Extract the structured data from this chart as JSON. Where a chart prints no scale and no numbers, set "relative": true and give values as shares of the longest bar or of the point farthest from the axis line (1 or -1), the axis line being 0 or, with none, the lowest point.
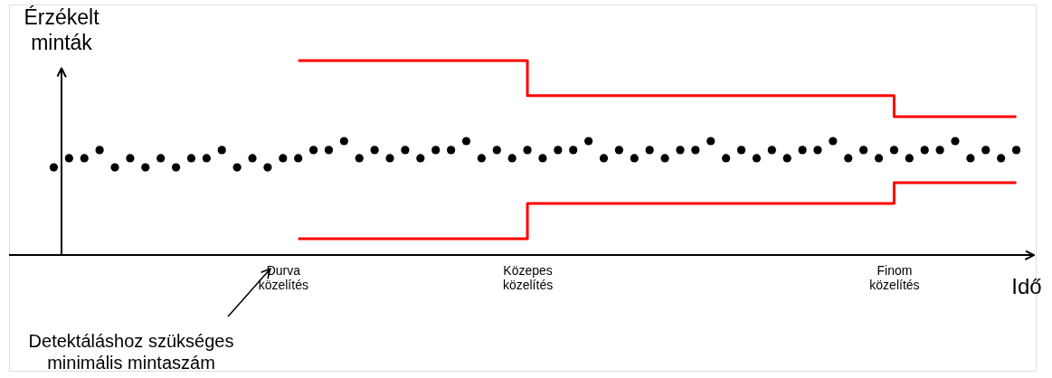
{
  "chart_data": {
    "type": "scatter",
    "relative": true,
    "xlabel": "Idő",
    "ylabel": "Érzékelt minták",
    "categories": [
      null,
      null,
      null,
      null,
      null,
      null,
      null,
      null,
      null,
      null,
      null,
      null,
      null,
      null,
      null,
      "Durva közelítés",
      null,
      null,
      null,
      null,
      null,
      null,
      null,
      null,
      null,
      null,
      null,
      null,
      null,
      null,
      null,
      "Közepes közelítés",
      null,
      null,
      null,
      null,
      null,
      null,
      null,
      null,
      null,
      null,
      null,
      null,
      null,
      null,
      null,
      null,
      null,
      null,
      null,
      null,
      null,
      null,
      null,
      "Finom közelítés",
      null,
      null,
      null,
      null,
      null,
      null,
      null,
      null
    ],
    "grid": false,
    "tick_labels": "x",
    "annotations": [
      "Detektáláshoz szükséges minimális mintaszám"
    ],
    "series": [
      {
        "color": "#000000",
        "marker": "circle",
        "values": [
          0.451,
          0.498,
          0.498,
          0.54,
          0.451,
          0.498,
          0.451,
          0.498,
          0.451,
          0.498,
          0.498,
          0.54,
          0.451,
          0.498,
          0.451,
          0.498,
          0.498,
          0.54,
          0.54,
          0.586,
          0.498,
          0.54,
          0.498,
          0.54,
          0.498,
          0.54,
          0.54,
          0.586,
          0.498,
          0.54,
          0.498,
          0.54,
          0.498,
          0.54,
          0.54,
          0.586,
          0.498,
          0.54,
          0.498,
          0.54,
          0.498,
          0.54,
          0.54,
          0.586,
          0.498,
          0.54,
          0.498,
          0.54,
          0.498,
          0.54,
          0.54,
          0.586,
          0.498,
          0.54,
          0.498,
          0.54,
          0.498,
          0.54,
          0.54,
          0.586,
          0.498,
          0.54,
          0.498,
          0.54
        ]
      },
      {
        "type": "step",
        "color": "#ff0000",
        "marker": "none",
        "values": [
          null,
          null,
          null,
          null,
          null,
          null,
          null,
          null,
          null,
          null,
          null,
          null,
          null,
          null,
          null,
          null,
          1.0,
          1.0,
          1.0,
          1.0,
          1.0,
          1.0,
          1.0,
          1.0,
          1.0,
          1.0,
          1.0,
          1.0,
          1.0,
          1.0,
          1.0,
          0.819,
          0.819,
          0.819,
          0.819,
          0.819,
          0.819,
          0.819,
          0.819,
          0.819,
          0.819,
          0.819,
          0.819,
          0.819,
          0.819,
          0.819,
          0.819,
          0.819,
          0.819,
          0.819,
          0.819,
          0.819,
          0.819,
          0.819,
          0.819,
          0.712,
          0.712,
          0.712,
          0.712,
          0.712,
          0.712,
          0.712,
          0.712,
          0.712
        ]
      },
      {
        "type": "step",
        "color": "#ff0000",
        "marker": "none",
        "values": [
          null,
          null,
          null,
          null,
          null,
          null,
          null,
          null,
          null,
          null,
          null,
          null,
          null,
          null,
          null,
          null,
          0.084,
          0.084,
          0.084,
          0.084,
          0.084,
          0.084,
          0.084,
          0.084,
          0.084,
          0.084,
          0.084,
          0.084,
          0.084,
          0.084,
          0.084,
          0.265,
          0.265,
          0.265,
          0.265,
          0.265,
          0.265,
          0.265,
          0.265,
          0.265,
          0.265,
          0.265,
          0.265,
          0.265,
          0.265,
          0.265,
          0.265,
          0.265,
          0.265,
          0.265,
          0.265,
          0.265,
          0.265,
          0.265,
          0.265,
          0.372,
          0.372,
          0.372,
          0.372,
          0.372,
          0.372,
          0.372,
          0.372,
          0.372
        ]
      }
    ]
  }
}
